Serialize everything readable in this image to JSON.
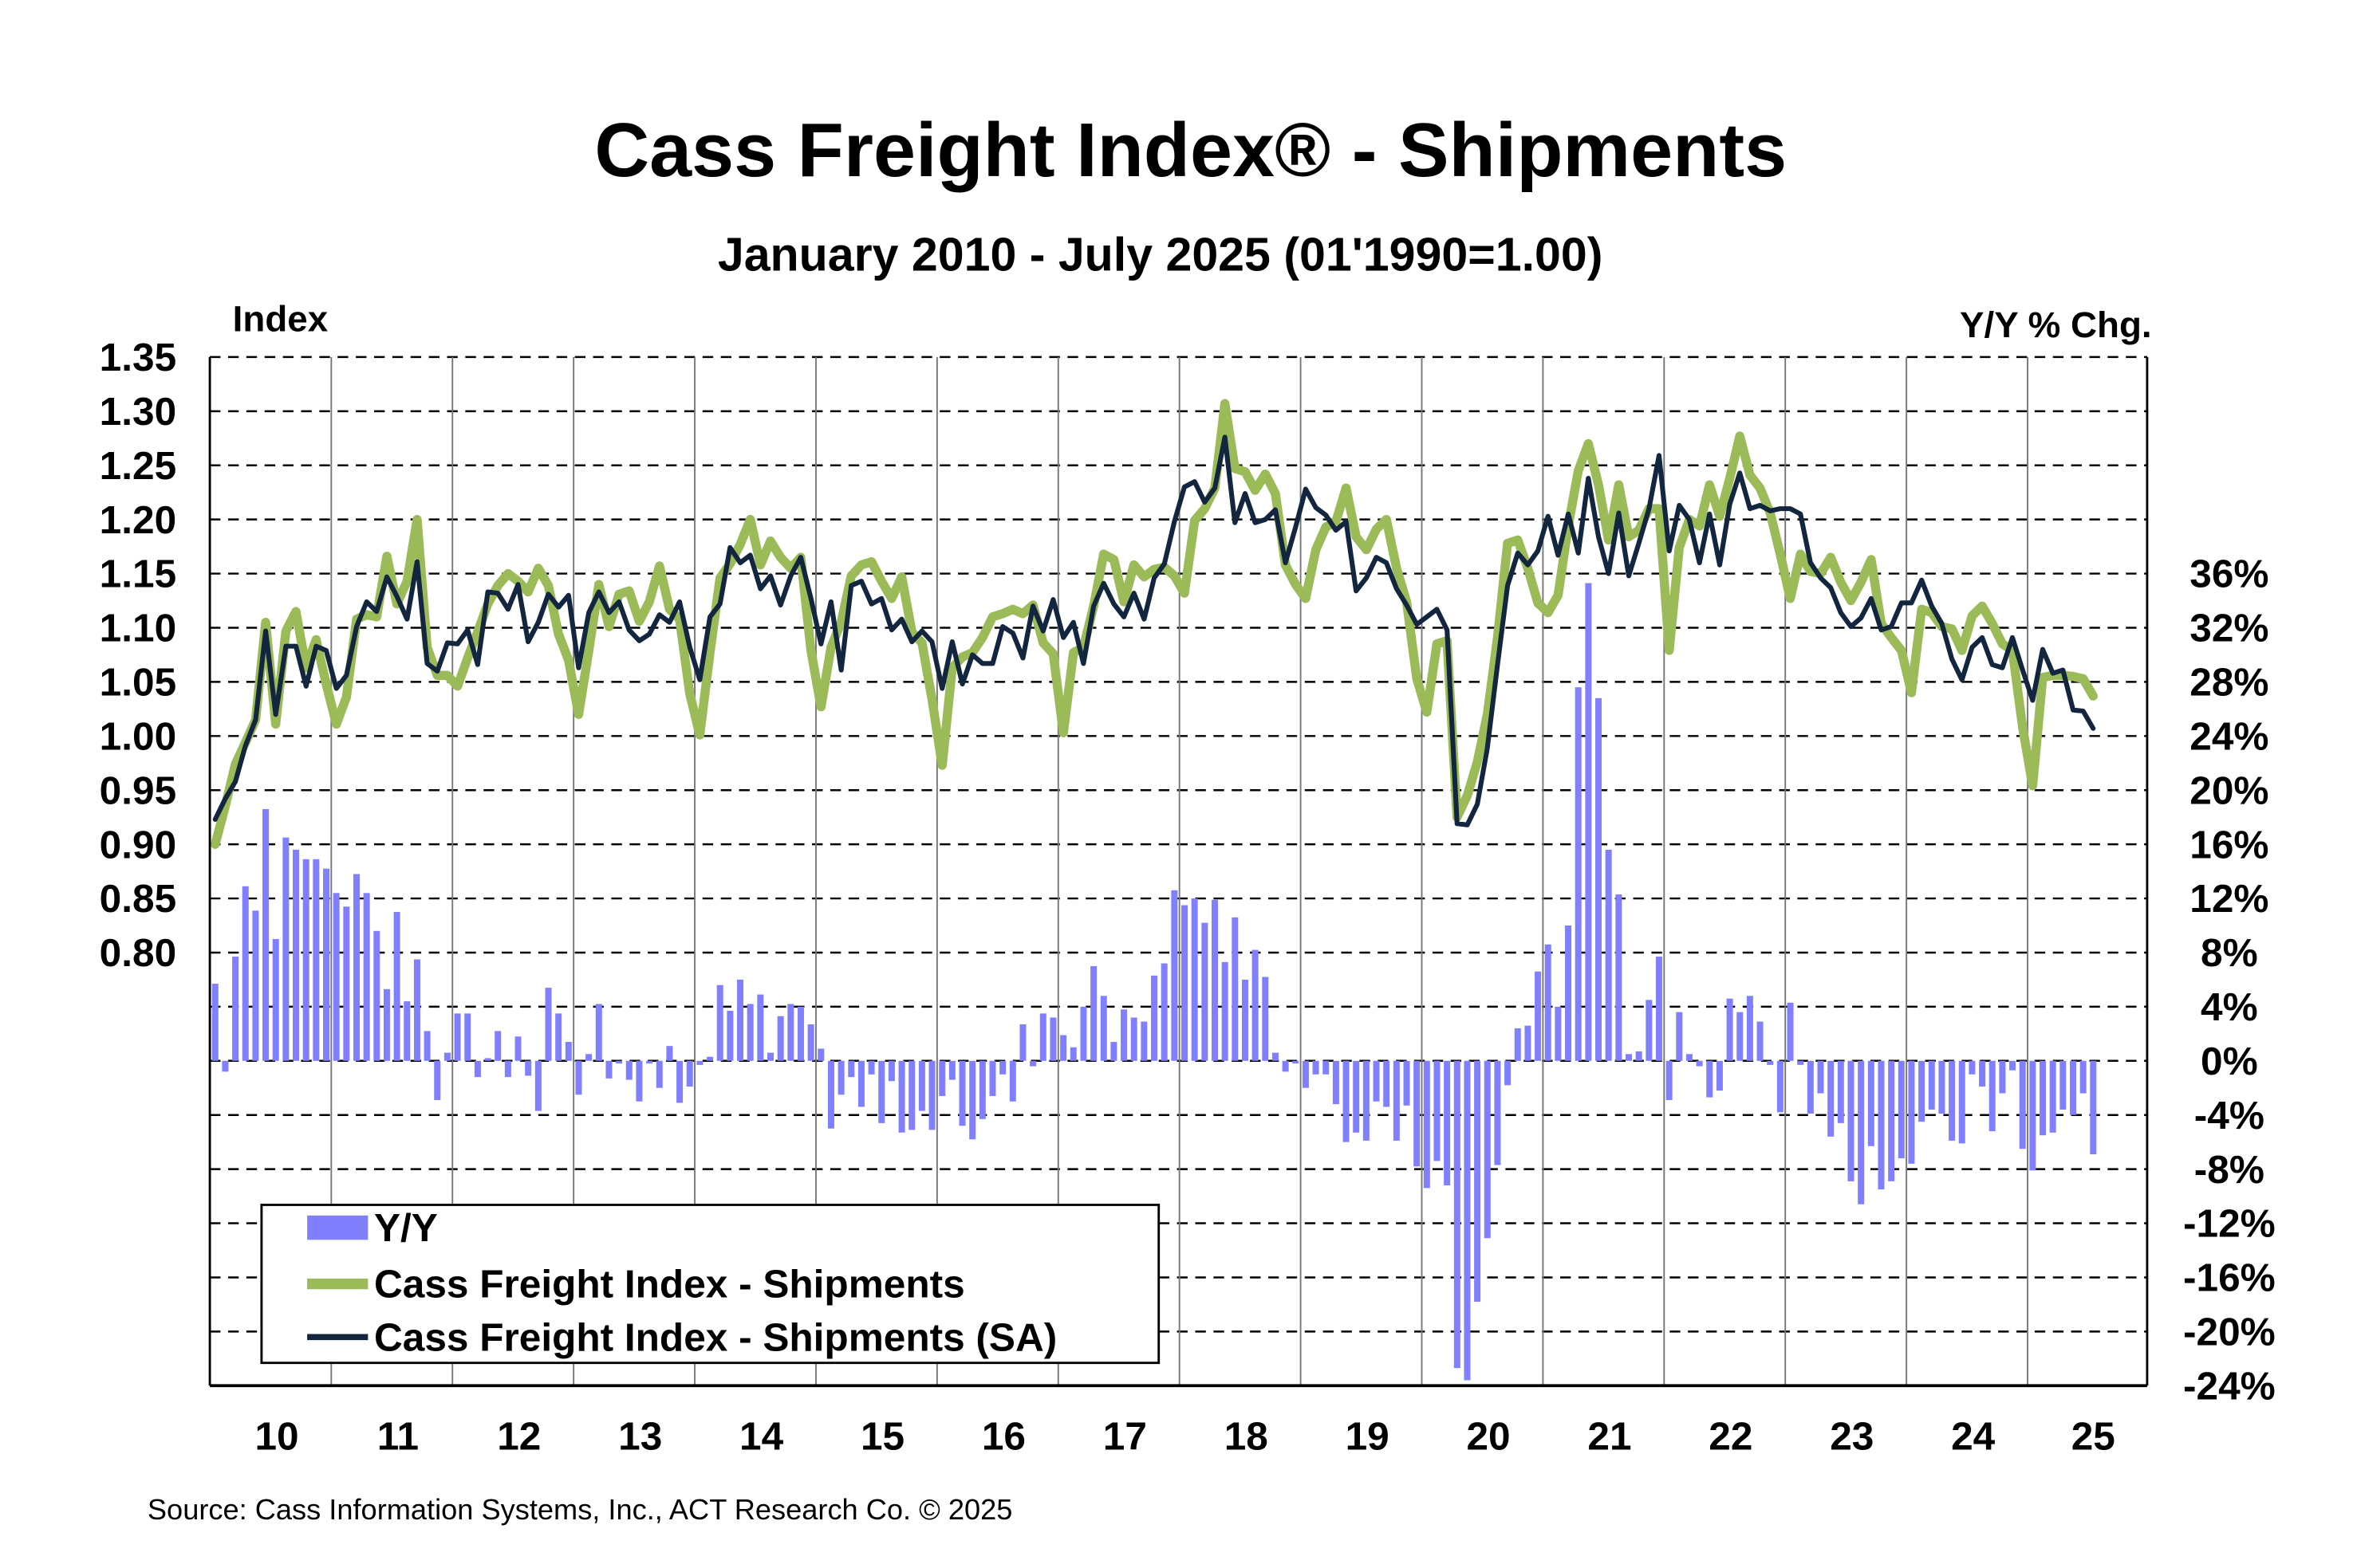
{
  "chart_data": {
    "type": "bar+line",
    "title": "Cass Freight Index® - Shipments",
    "subtitle": "January 2010 - July 2025 (01'1990=1.00)",
    "ylabel_left": "Index",
    "ylabel_right": "Y/Y % Chg.",
    "source": "Source: Cass Information Systems, Inc., ACT Research Co. © 2025",
    "x_start": "2010-01",
    "x_end": "2025-07",
    "x_tick_labels": [
      "10",
      "11",
      "12",
      "13",
      "14",
      "15",
      "16",
      "17",
      "18",
      "19",
      "20",
      "21",
      "22",
      "23",
      "24",
      "25"
    ],
    "ylim_left": [
      0.5,
      1.35
    ],
    "ylim_right": [
      -24,
      44
    ],
    "y_ticks_left": [
      "1.35",
      "1.30",
      "1.25",
      "1.20",
      "1.15",
      "1.10",
      "1.05",
      "1.00",
      "0.95",
      "0.90",
      "0.85",
      "0.80"
    ],
    "y_ticks_right": [
      "36%",
      "32%",
      "28%",
      "24%",
      "20%",
      "16%",
      "12%",
      "8%",
      "4%",
      "0%",
      "-4%",
      "-8%",
      "-12%",
      "-16%",
      "-20%",
      "-24%"
    ],
    "grid": true,
    "legend_position": "bottom-left",
    "colors": {
      "yy": "#8080ff",
      "shipments": "#9bbb59",
      "sa": "#13263f"
    },
    "series": [
      {
        "name": "Y/Y",
        "type": "bar",
        "axis": "right",
        "values": [
          5.7,
          -0.8,
          7.7,
          12.9,
          11.1,
          18.6,
          9.0,
          16.5,
          15.6,
          14.9,
          14.9,
          14.2,
          12.4,
          11.4,
          13.8,
          12.4,
          9.6,
          5.3,
          11.0,
          4.4,
          7.5,
          2.2,
          -2.9,
          0.6,
          3.5,
          3.5,
          -1.2,
          0.2,
          2.2,
          -1.2,
          1.8,
          -1.1,
          -3.7,
          5.4,
          3.5,
          1.4,
          -2.5,
          0.5,
          4.2,
          -1.3,
          -0.2,
          -1.4,
          -3.0,
          -0.2,
          -2.0,
          1.1,
          -3.1,
          -1.9,
          -0.3,
          0.3,
          5.6,
          3.7,
          6.0,
          4.2,
          4.9,
          0.6,
          3.3,
          4.2,
          4.0,
          2.7,
          0.9,
          -5.0,
          -2.5,
          -1.2,
          -3.4,
          -1.0,
          -4.6,
          -1.5,
          -5.3,
          -5.1,
          -3.7,
          -5.1,
          -2.6,
          -1.4,
          -4.8,
          -5.8,
          -4.3,
          -2.6,
          -1.0,
          -3.0,
          2.7,
          -0.4,
          3.5,
          3.2,
          1.9,
          1.0,
          4.0,
          7.0,
          4.8,
          1.4,
          3.8,
          3.2,
          2.9,
          6.3,
          7.2,
          12.6,
          11.5,
          12.0,
          10.2,
          11.9,
          7.3,
          10.6,
          6.0,
          8.2,
          6.2,
          0.6,
          -0.8,
          -0.2,
          -2.0,
          -1.0,
          -1.0,
          -3.2,
          -6.0,
          -5.3,
          -5.9,
          -3.0,
          -3.4,
          -5.9,
          -3.3,
          -7.8,
          -9.4,
          -7.4,
          -9.2,
          -22.7,
          -23.6,
          -17.8,
          -13.1,
          -7.7,
          -1.8,
          2.4,
          2.6,
          6.6,
          8.6,
          4.0,
          10.0,
          27.6,
          35.3,
          26.8,
          15.6,
          12.3,
          0.5,
          0.7,
          4.5,
          7.7,
          -2.9,
          3.6,
          0.5,
          -0.4,
          -2.7,
          -2.2,
          4.6,
          3.6,
          4.8,
          2.9,
          -0.3,
          -3.8,
          4.3,
          -0.3,
          -3.9,
          -2.4,
          -5.6,
          -4.6,
          -8.9,
          -10.6,
          -6.3,
          -9.5,
          -8.9,
          -7.2,
          -7.6,
          -4.5,
          -3.6,
          -3.9,
          -5.9,
          -6.1,
          -1.0,
          -1.9,
          -5.2,
          -2.4,
          -0.7,
          -6.5,
          -8.1,
          -5.5,
          -5.3,
          -3.6,
          -4.0,
          -2.4,
          -6.9
        ]
      },
      {
        "name": "Cass Freight Index - Shipments",
        "type": "line",
        "axis": "left",
        "values": [
          0.9,
          0.935,
          0.974,
          0.994,
          1.015,
          1.105,
          1.011,
          1.097,
          1.115,
          1.063,
          1.089,
          1.048,
          1.011,
          1.036,
          1.108,
          1.112,
          1.11,
          1.166,
          1.122,
          1.143,
          1.2,
          1.082,
          1.056,
          1.056,
          1.046,
          1.072,
          1.096,
          1.122,
          1.139,
          1.15,
          1.143,
          1.133,
          1.155,
          1.139,
          1.094,
          1.07,
          1.02,
          1.079,
          1.14,
          1.101,
          1.131,
          1.134,
          1.106,
          1.124,
          1.157,
          1.117,
          1.108,
          1.039,
          1.001,
          1.077,
          1.146,
          1.159,
          1.177,
          1.2,
          1.158,
          1.18,
          1.165,
          1.155,
          1.165,
          1.079,
          1.027,
          1.082,
          1.105,
          1.148,
          1.158,
          1.161,
          1.143,
          1.127,
          1.147,
          1.096,
          1.086,
          1.034,
          0.973,
          1.063,
          1.073,
          1.077,
          1.091,
          1.11,
          1.113,
          1.117,
          1.113,
          1.121,
          1.086,
          1.076,
          1.003,
          1.077,
          1.082,
          1.12,
          1.168,
          1.163,
          1.124,
          1.158,
          1.147,
          1.154,
          1.156,
          1.148,
          1.132,
          1.199,
          1.21,
          1.229,
          1.307,
          1.247,
          1.244,
          1.227,
          1.242,
          1.224,
          1.158,
          1.14,
          1.127,
          1.172,
          1.193,
          1.198,
          1.229,
          1.184,
          1.172,
          1.191,
          1.2,
          1.155,
          1.124,
          1.053,
          1.022,
          1.085,
          1.088,
          0.925,
          0.945,
          0.976,
          1.02,
          1.091,
          1.178,
          1.181,
          1.155,
          1.123,
          1.114,
          1.13,
          1.194,
          1.245,
          1.27,
          1.232,
          1.181,
          1.232,
          1.184,
          1.19,
          1.21,
          1.21,
          1.079,
          1.174,
          1.2,
          1.194,
          1.232,
          1.203,
          1.238,
          1.277,
          1.241,
          1.229,
          1.206,
          1.168,
          1.127,
          1.168,
          1.152,
          1.15,
          1.165,
          1.142,
          1.125,
          1.142,
          1.163,
          1.104,
          1.091,
          1.079,
          1.04,
          1.117,
          1.114,
          1.101,
          1.099,
          1.079,
          1.111,
          1.12,
          1.104,
          1.085,
          1.079,
          1.008,
          0.954,
          1.054,
          1.056,
          1.056,
          1.055,
          1.053,
          1.037
        ]
      },
      {
        "name": "Cass Freight Index - Shipments (SA)",
        "type": "line",
        "axis": "left",
        "values": [
          0.923,
          0.942,
          0.958,
          0.991,
          1.015,
          1.097,
          1.02,
          1.083,
          1.083,
          1.046,
          1.083,
          1.079,
          1.044,
          1.056,
          1.101,
          1.124,
          1.115,
          1.147,
          1.129,
          1.108,
          1.161,
          1.067,
          1.06,
          1.086,
          1.085,
          1.098,
          1.066,
          1.133,
          1.132,
          1.117,
          1.14,
          1.087,
          1.105,
          1.131,
          1.119,
          1.13,
          1.063,
          1.114,
          1.133,
          1.114,
          1.124,
          1.098,
          1.088,
          1.094,
          1.112,
          1.105,
          1.124,
          1.082,
          1.052,
          1.11,
          1.122,
          1.174,
          1.16,
          1.167,
          1.136,
          1.148,
          1.121,
          1.148,
          1.165,
          1.127,
          1.085,
          1.124,
          1.061,
          1.139,
          1.143,
          1.122,
          1.127,
          1.098,
          1.108,
          1.087,
          1.097,
          1.087,
          1.044,
          1.087,
          1.048,
          1.075,
          1.067,
          1.067,
          1.101,
          1.095,
          1.072,
          1.12,
          1.097,
          1.126,
          1.091,
          1.105,
          1.067,
          1.12,
          1.141,
          1.122,
          1.11,
          1.132,
          1.108,
          1.146,
          1.159,
          1.198,
          1.23,
          1.235,
          1.216,
          1.229,
          1.276,
          1.197,
          1.224,
          1.197,
          1.2,
          1.209,
          1.16,
          1.193,
          1.228,
          1.211,
          1.204,
          1.19,
          1.198,
          1.134,
          1.146,
          1.165,
          1.16,
          1.136,
          1.121,
          1.103,
          1.11,
          1.117,
          1.098,
          0.919,
          0.918,
          0.937,
          0.989,
          1.066,
          1.139,
          1.169,
          1.158,
          1.171,
          1.203,
          1.167,
          1.205,
          1.169,
          1.238,
          1.184,
          1.15,
          1.206,
          1.148,
          1.178,
          1.21,
          1.259,
          1.171,
          1.213,
          1.2,
          1.16,
          1.205,
          1.158,
          1.214,
          1.243,
          1.21,
          1.213,
          1.208,
          1.21,
          1.21,
          1.205,
          1.16,
          1.146,
          1.137,
          1.114,
          1.101,
          1.109,
          1.127,
          1.098,
          1.101,
          1.123,
          1.123,
          1.144,
          1.12,
          1.104,
          1.071,
          1.052,
          1.082,
          1.091,
          1.066,
          1.063,
          1.091,
          1.061,
          1.033,
          1.08,
          1.058,
          1.061,
          1.024,
          1.023,
          1.007
        ]
      }
    ]
  }
}
